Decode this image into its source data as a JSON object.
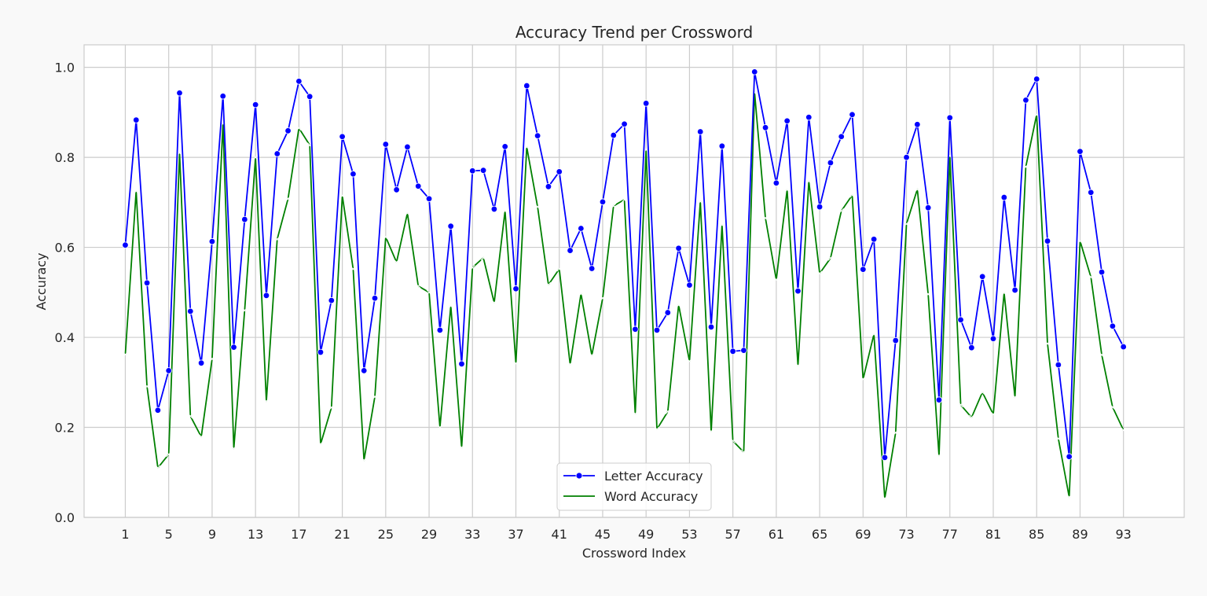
{
  "chart_data": {
    "type": "line",
    "title": "Accuracy Trend per Crossword",
    "xlabel": "Crossword Index",
    "ylabel": "Accuracy",
    "xlim": [
      -2.8,
      98.6
    ],
    "ylim": [
      0.0,
      1.05
    ],
    "x_ticks": [
      1,
      5,
      9,
      13,
      17,
      21,
      25,
      29,
      33,
      37,
      41,
      45,
      49,
      53,
      57,
      61,
      65,
      69,
      73,
      77,
      81,
      85,
      89,
      93
    ],
    "y_ticks": [
      "0.0",
      "0.2",
      "0.4",
      "0.6",
      "0.8",
      "1.0"
    ],
    "grid": true,
    "legend": "lower-center",
    "series": [
      {
        "name": "Letter Accuracy",
        "color": "#0000ff",
        "marker": "circle",
        "values": [
          0.605,
          0.883,
          0.521,
          0.238,
          0.326,
          0.943,
          0.458,
          0.343,
          0.613,
          0.936,
          0.378,
          0.662,
          0.917,
          0.493,
          0.808,
          0.859,
          0.969,
          0.935,
          0.367,
          0.482,
          0.846,
          0.763,
          0.326,
          0.487,
          0.829,
          0.728,
          0.823,
          0.736,
          0.708,
          0.416,
          0.647,
          0.341,
          0.77,
          0.771,
          0.685,
          0.824,
          0.508,
          0.959,
          0.848,
          0.735,
          0.768,
          0.593,
          0.642,
          0.553,
          0.701,
          0.849,
          0.874,
          0.418,
          0.92,
          0.416,
          0.455,
          0.598,
          0.516,
          0.857,
          0.423,
          0.825,
          0.369,
          0.371,
          0.99,
          0.866,
          0.743,
          0.881,
          0.503,
          0.889,
          0.69,
          0.788,
          0.846,
          0.895,
          0.551,
          0.618,
          0.133,
          0.393,
          0.8,
          0.873,
          0.688,
          0.261,
          0.888,
          0.439,
          0.377,
          0.535,
          0.397,
          0.711,
          0.505,
          0.927,
          0.974,
          0.614,
          0.339,
          0.135,
          0.813,
          0.722,
          0.545,
          0.425,
          0.379
        ]
      },
      {
        "name": "Word Accuracy",
        "color": "#008000",
        "marker": "x",
        "values": [
          0.362,
          0.725,
          0.291,
          0.11,
          0.14,
          0.81,
          0.225,
          0.179,
          0.352,
          0.875,
          0.153,
          0.46,
          0.8,
          0.258,
          0.618,
          0.708,
          0.865,
          0.827,
          0.163,
          0.244,
          0.715,
          0.552,
          0.127,
          0.268,
          0.623,
          0.567,
          0.676,
          0.514,
          0.5,
          0.2,
          0.47,
          0.155,
          0.555,
          0.577,
          0.477,
          0.681,
          0.342,
          0.823,
          0.69,
          0.517,
          0.552,
          0.34,
          0.497,
          0.36,
          0.487,
          0.692,
          0.706,
          0.23,
          0.817,
          0.196,
          0.235,
          0.472,
          0.347,
          0.702,
          0.191,
          0.65,
          0.17,
          0.145,
          0.944,
          0.665,
          0.528,
          0.728,
          0.337,
          0.747,
          0.542,
          0.576,
          0.681,
          0.716,
          0.307,
          0.407,
          0.042,
          0.188,
          0.652,
          0.729,
          0.496,
          0.137,
          0.803,
          0.25,
          0.222,
          0.278,
          0.229,
          0.499,
          0.267,
          0.779,
          0.895,
          0.386,
          0.175,
          0.045,
          0.614,
          0.534,
          0.361,
          0.245,
          0.194
        ]
      }
    ]
  }
}
